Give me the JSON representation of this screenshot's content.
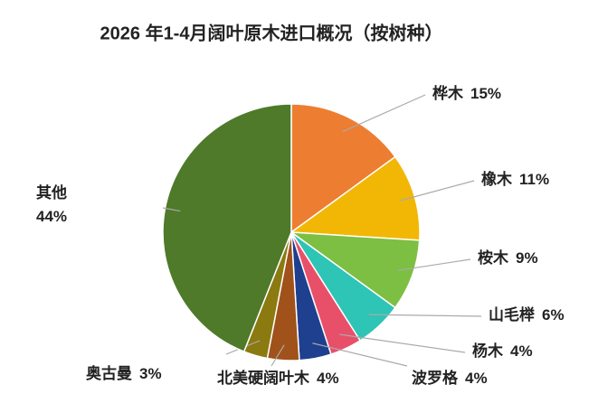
{
  "chart_data": {
    "type": "pie",
    "title": "2026 年1-4月阔叶原木进口概况（按树种）",
    "categories": [
      "桦木",
      "橡木",
      "桉木",
      "山毛榉",
      "杨木",
      "波罗格",
      "北美硬阔叶木",
      "奥古曼",
      "其他"
    ],
    "values": [
      15,
      11,
      9,
      6,
      4,
      4,
      4,
      3,
      44
    ],
    "value_labels": [
      "15%",
      "11%",
      "9%",
      "6%",
      "4%",
      "4%",
      "4%",
      "3%",
      "44%"
    ],
    "colors": [
      "#ED7D31",
      "#F2B705",
      "#7DBF42",
      "#2EC4B6",
      "#E8506A",
      "#1F3F8F",
      "#A0521A",
      "#8B7A10",
      "#4E7A2A"
    ]
  }
}
